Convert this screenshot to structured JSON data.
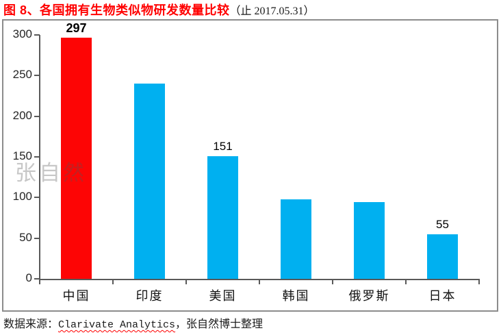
{
  "title": {
    "main": "图 8、各国拥有生物类似物研发数量比较",
    "suffix": "（止 2017.05.31）"
  },
  "watermark": {
    "text": "张自然"
  },
  "footer": {
    "prefix": "数据来源：",
    "source": "Clarivate Analytics",
    "suffix": "，张自然博士整理"
  },
  "chart_data": {
    "type": "bar",
    "title": "各国拥有生物类似物研发数量比较（止 2017.05.31）",
    "categories": [
      "中国",
      "印度",
      "美国",
      "韩国",
      "俄罗斯",
      "日本"
    ],
    "values": [
      297,
      240,
      151,
      98,
      94,
      55
    ],
    "value_labels": [
      {
        "index": 0,
        "text": "297",
        "bold": true
      },
      {
        "index": 2,
        "text": "151",
        "bold": false
      },
      {
        "index": 5,
        "text": "55",
        "bold": false
      }
    ],
    "highlight_index": 0,
    "xlabel": "",
    "ylabel": "",
    "ylim": [
      0,
      300
    ],
    "ytick_step": 50,
    "grid": false,
    "legend": "none",
    "colors": {
      "highlight_bar": "#fd0505",
      "bar": "#00b0f0",
      "axis": "#595959",
      "frame_border": "#8c8c8c",
      "title_accent": "#ff0000",
      "spellcheck_underline": "#ff0000"
    }
  }
}
